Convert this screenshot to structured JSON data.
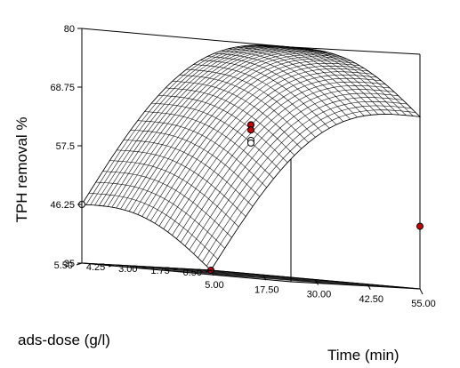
{
  "chart_data": {
    "type": "surface3d",
    "zlabel": "TPH removal %",
    "xlabel": "Time (min)",
    "ylabel": "ads-dose (g/l)",
    "x_ticks": [
      "5.00",
      "17.50",
      "30.00",
      "42.50",
      "55.00"
    ],
    "y_ticks": [
      "0.50",
      "1.75",
      "3.00",
      "4.25",
      "5.50"
    ],
    "z_ticks": [
      "35",
      "46.25",
      "57.5",
      "68.75",
      "80"
    ],
    "xlim": [
      5,
      55
    ],
    "ylim": [
      0.5,
      5.5
    ],
    "zlim": [
      35,
      80
    ],
    "surface_corners": {
      "time5_dose0.5": 35,
      "time55_dose0.5": 68,
      "time5_dose5.5": 46.25,
      "time55_dose5.5": 80
    },
    "design_points": [
      {
        "time": 5,
        "dose": 5.5,
        "removal": 46.25,
        "color": "#ffffff"
      },
      {
        "time": 55,
        "dose": 0.5,
        "removal": 47,
        "color": "#cc0000"
      },
      {
        "time": 5,
        "dose": 0.5,
        "removal": 35,
        "color": "#cc0000"
      },
      {
        "time": 30,
        "dose": 3,
        "removal": 64,
        "color": "#cc0000"
      },
      {
        "time": 30,
        "dose": 3,
        "removal": 63,
        "color": "#cc0000"
      },
      {
        "time": 30,
        "dose": 3,
        "removal": 61,
        "color": "#ffffff"
      },
      {
        "time": 30,
        "dose": 3,
        "removal": 60.5,
        "color": "#ffffff"
      }
    ],
    "colors": {
      "floor": "#c8c8c8",
      "surface": "#ffffff",
      "point_red": "#cc0000"
    }
  }
}
